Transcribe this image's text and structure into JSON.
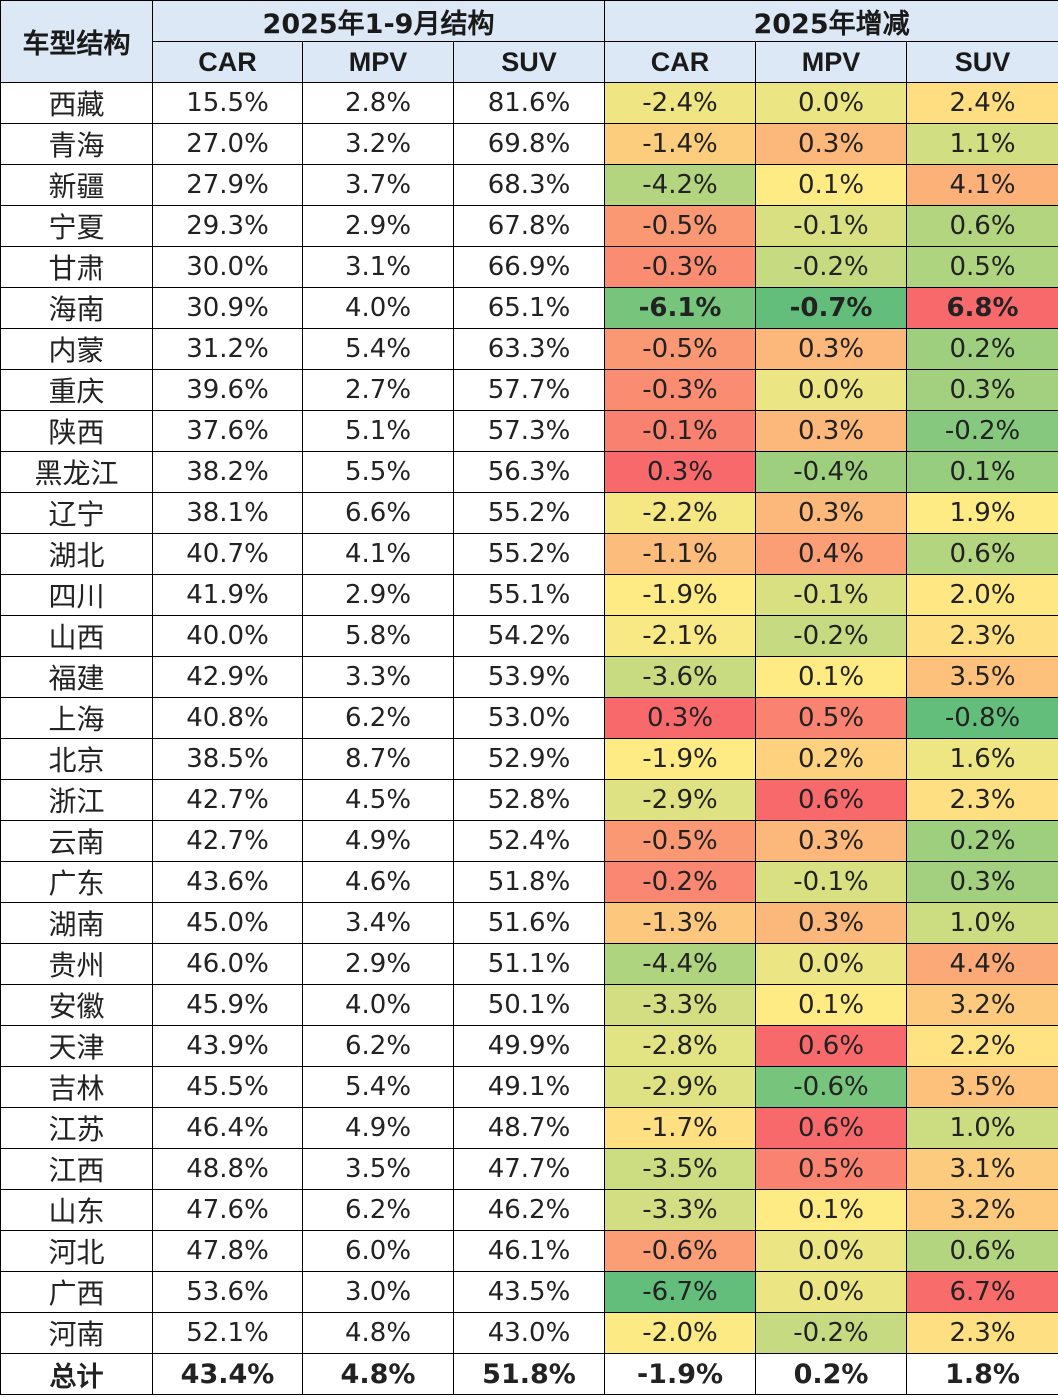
{
  "header": {
    "corner": "车型结构",
    "group1": "2025年1-9月结构",
    "group2": "2025年增减",
    "cols1": [
      "CAR",
      "MPV",
      "SUV"
    ],
    "cols2": [
      "CAR",
      "MPV",
      "SUV"
    ]
  },
  "colors": {
    "header_bg": "#dde8f6",
    "scale_green": "#63be7b",
    "scale_yellow": "#ffeb84",
    "scale_red": "#f8696b"
  },
  "rows": [
    {
      "prov": "西藏",
      "car": "15.5%",
      "mpv": "2.8%",
      "suv": "81.6%",
      "dcar": "-2.4%",
      "dmpv": "0.0%",
      "dsuv": "2.4%"
    },
    {
      "prov": "青海",
      "car": "27.0%",
      "mpv": "3.2%",
      "suv": "69.8%",
      "dcar": "-1.4%",
      "dmpv": "0.3%",
      "dsuv": "1.1%"
    },
    {
      "prov": "新疆",
      "car": "27.9%",
      "mpv": "3.7%",
      "suv": "68.3%",
      "dcar": "-4.2%",
      "dmpv": "0.1%",
      "dsuv": "4.1%"
    },
    {
      "prov": "宁夏",
      "car": "29.3%",
      "mpv": "2.9%",
      "suv": "67.8%",
      "dcar": "-0.5%",
      "dmpv": "-0.1%",
      "dsuv": "0.6%"
    },
    {
      "prov": "甘肃",
      "car": "30.0%",
      "mpv": "3.1%",
      "suv": "66.9%",
      "dcar": "-0.3%",
      "dmpv": "-0.2%",
      "dsuv": "0.5%"
    },
    {
      "prov": "海南",
      "car": "30.9%",
      "mpv": "4.0%",
      "suv": "65.1%",
      "dcar": "-6.1%",
      "dmpv": "-0.7%",
      "dsuv": "6.8%",
      "bold": true
    },
    {
      "prov": "内蒙",
      "car": "31.2%",
      "mpv": "5.4%",
      "suv": "63.3%",
      "dcar": "-0.5%",
      "dmpv": "0.3%",
      "dsuv": "0.2%"
    },
    {
      "prov": "重庆",
      "car": "39.6%",
      "mpv": "2.7%",
      "suv": "57.7%",
      "dcar": "-0.3%",
      "dmpv": "0.0%",
      "dsuv": "0.3%"
    },
    {
      "prov": "陕西",
      "car": "37.6%",
      "mpv": "5.1%",
      "suv": "57.3%",
      "dcar": "-0.1%",
      "dmpv": "0.3%",
      "dsuv": "-0.2%"
    },
    {
      "prov": "黑龙江",
      "car": "38.2%",
      "mpv": "5.5%",
      "suv": "56.3%",
      "dcar": "0.3%",
      "dmpv": "-0.4%",
      "dsuv": "0.1%"
    },
    {
      "prov": "辽宁",
      "car": "38.1%",
      "mpv": "6.6%",
      "suv": "55.2%",
      "dcar": "-2.2%",
      "dmpv": "0.3%",
      "dsuv": "1.9%"
    },
    {
      "prov": "湖北",
      "car": "40.7%",
      "mpv": "4.1%",
      "suv": "55.2%",
      "dcar": "-1.1%",
      "dmpv": "0.4%",
      "dsuv": "0.6%"
    },
    {
      "prov": "四川",
      "car": "41.9%",
      "mpv": "2.9%",
      "suv": "55.1%",
      "dcar": "-1.9%",
      "dmpv": "-0.1%",
      "dsuv": "2.0%"
    },
    {
      "prov": "山西",
      "car": "40.0%",
      "mpv": "5.8%",
      "suv": "54.2%",
      "dcar": "-2.1%",
      "dmpv": "-0.2%",
      "dsuv": "2.3%"
    },
    {
      "prov": "福建",
      "car": "42.9%",
      "mpv": "3.3%",
      "suv": "53.9%",
      "dcar": "-3.6%",
      "dmpv": "0.1%",
      "dsuv": "3.5%"
    },
    {
      "prov": "上海",
      "car": "40.8%",
      "mpv": "6.2%",
      "suv": "53.0%",
      "dcar": "0.3%",
      "dmpv": "0.5%",
      "dsuv": "-0.8%"
    },
    {
      "prov": "北京",
      "car": "38.5%",
      "mpv": "8.7%",
      "suv": "52.9%",
      "dcar": "-1.9%",
      "dmpv": "0.2%",
      "dsuv": "1.6%"
    },
    {
      "prov": "浙江",
      "car": "42.7%",
      "mpv": "4.5%",
      "suv": "52.8%",
      "dcar": "-2.9%",
      "dmpv": "0.6%",
      "dsuv": "2.3%"
    },
    {
      "prov": "云南",
      "car": "42.7%",
      "mpv": "4.9%",
      "suv": "52.4%",
      "dcar": "-0.5%",
      "dmpv": "0.3%",
      "dsuv": "0.2%"
    },
    {
      "prov": "广东",
      "car": "43.6%",
      "mpv": "4.6%",
      "suv": "51.8%",
      "dcar": "-0.2%",
      "dmpv": "-0.1%",
      "dsuv": "0.3%"
    },
    {
      "prov": "湖南",
      "car": "45.0%",
      "mpv": "3.4%",
      "suv": "51.6%",
      "dcar": "-1.3%",
      "dmpv": "0.3%",
      "dsuv": "1.0%"
    },
    {
      "prov": "贵州",
      "car": "46.0%",
      "mpv": "2.9%",
      "suv": "51.1%",
      "dcar": "-4.4%",
      "dmpv": "0.0%",
      "dsuv": "4.4%"
    },
    {
      "prov": "安徽",
      "car": "45.9%",
      "mpv": "4.0%",
      "suv": "50.1%",
      "dcar": "-3.3%",
      "dmpv": "0.1%",
      "dsuv": "3.2%"
    },
    {
      "prov": "天津",
      "car": "43.9%",
      "mpv": "6.2%",
      "suv": "49.9%",
      "dcar": "-2.8%",
      "dmpv": "0.6%",
      "dsuv": "2.2%"
    },
    {
      "prov": "吉林",
      "car": "45.5%",
      "mpv": "5.4%",
      "suv": "49.1%",
      "dcar": "-2.9%",
      "dmpv": "-0.6%",
      "dsuv": "3.5%"
    },
    {
      "prov": "江苏",
      "car": "46.4%",
      "mpv": "4.9%",
      "suv": "48.7%",
      "dcar": "-1.7%",
      "dmpv": "0.6%",
      "dsuv": "1.0%"
    },
    {
      "prov": "江西",
      "car": "48.8%",
      "mpv": "3.5%",
      "suv": "47.7%",
      "dcar": "-3.5%",
      "dmpv": "0.5%",
      "dsuv": "3.1%"
    },
    {
      "prov": "山东",
      "car": "47.6%",
      "mpv": "6.2%",
      "suv": "46.2%",
      "dcar": "-3.3%",
      "dmpv": "0.1%",
      "dsuv": "3.2%"
    },
    {
      "prov": "河北",
      "car": "47.8%",
      "mpv": "6.0%",
      "suv": "46.1%",
      "dcar": "-0.6%",
      "dmpv": "0.0%",
      "dsuv": "0.6%"
    },
    {
      "prov": "广西",
      "car": "53.6%",
      "mpv": "3.0%",
      "suv": "43.5%",
      "dcar": "-6.7%",
      "dmpv": "0.0%",
      "dsuv": "6.7%"
    },
    {
      "prov": "河南",
      "car": "52.1%",
      "mpv": "4.8%",
      "suv": "43.0%",
      "dcar": "-2.0%",
      "dmpv": "-0.2%",
      "dsuv": "2.3%"
    }
  ],
  "total": {
    "prov": "总计",
    "car": "43.4%",
    "mpv": "4.8%",
    "suv": "51.8%",
    "dcar": "-1.9%",
    "dmpv": "0.2%",
    "dsuv": "1.8%"
  }
}
